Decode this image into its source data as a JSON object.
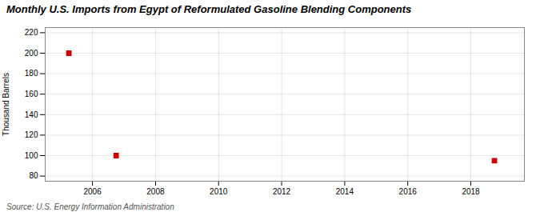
{
  "chart_data": {
    "type": "scatter",
    "title": "Monthly U.S. Imports from Egypt of Reformulated Gasoline Blending Components",
    "ylabel": "Thousand Barrels",
    "annotation": "Source: U.S. Energy Information Administration",
    "x": [
      2005.25,
      2006.75,
      2018.75
    ],
    "values": [
      200,
      100,
      95
    ],
    "color": "#cc0000",
    "marker": "square",
    "xlim": [
      2004.5,
      2019.7
    ],
    "ylim": [
      75,
      225
    ],
    "xticks": [
      2006,
      2008,
      2010,
      2012,
      2014,
      2016,
      2018
    ],
    "yticks": [
      80,
      100,
      120,
      140,
      160,
      180,
      200,
      220
    ],
    "grid": true
  }
}
